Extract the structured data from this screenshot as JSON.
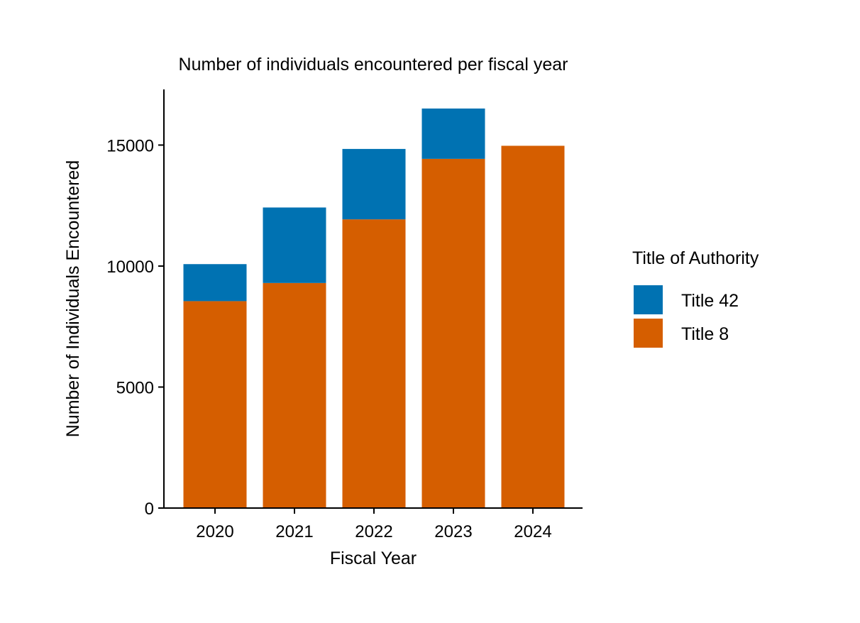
{
  "chart_data": {
    "type": "bar",
    "stacked": true,
    "title": "Number of individuals encountered per fiscal year",
    "xlabel": "Fiscal Year",
    "ylabel": "Number of Individuals Encountered",
    "categories": [
      "2020",
      "2021",
      "2022",
      "2023",
      "2024"
    ],
    "series": [
      {
        "name": "Title 8",
        "values": [
          8550,
          9300,
          11930,
          14430,
          14970
        ],
        "color": "#D55E00"
      },
      {
        "name": "Title 42",
        "values": [
          1530,
          3120,
          2910,
          2080,
          0
        ],
        "color": "#0072B2"
      }
    ],
    "ylim": [
      0,
      17300
    ],
    "yticks": [
      0,
      5000,
      10000,
      15000
    ],
    "ytick_labels": [
      "0",
      "5000",
      "10000",
      "15000"
    ],
    "grid": false,
    "legend": {
      "title": "Title of Authority",
      "placement": "right",
      "entries": [
        {
          "label": "Title 42",
          "color": "#0072B2"
        },
        {
          "label": "Title 8",
          "color": "#D55E00"
        }
      ]
    }
  }
}
